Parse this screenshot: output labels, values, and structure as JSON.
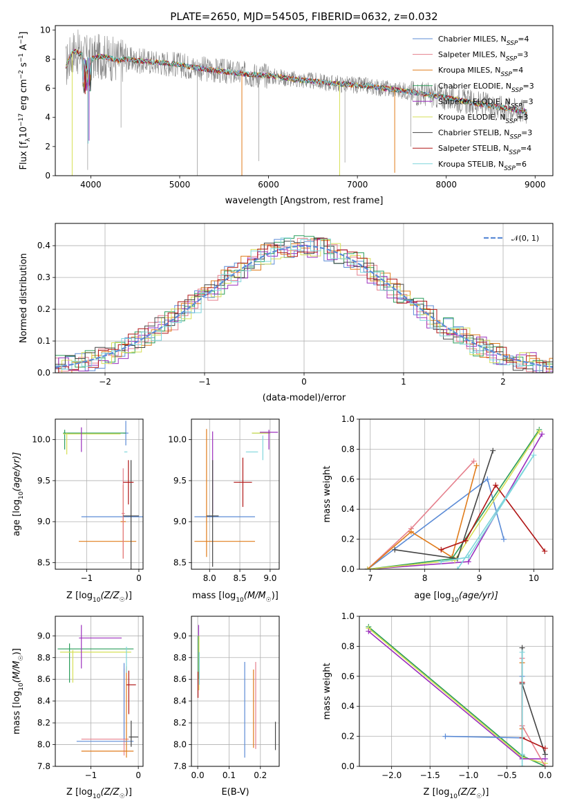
{
  "colors": {
    "c_miles": "#5b8bd6",
    "s_miles": "#e57f8c",
    "k_miles": "#e07b1a",
    "c_elodie": "#2a9d5a",
    "s_elodie": "#9b2fbd",
    "k_elodie": "#d6df55",
    "c_stelib": "#444444",
    "s_stelib": "#b01515",
    "k_stelib": "#7fd6dc",
    "data": "#808080",
    "gauss": "#5b8bd6"
  },
  "chart_data": [
    {
      "id": "spectrum",
      "type": "line",
      "title": "PLATE=2650, MJD=54505, FIBERID=0632, z=0.032",
      "xlabel": "wavelength [Angstrom, rest frame]",
      "ylabel": "Flux [f",
      "ylabel_sub": "λ",
      "ylabel_rest": "10",
      "ylabel_sup1": "−17",
      "ylabel_tail": " erg cm",
      "ylabel_sup2": "−2",
      "ylabel_tail2": " s",
      "ylabel_sup3": "−1",
      "ylabel_tail3": " A",
      "ylabel_sup4": "−1",
      "ylabel_end": "]",
      "xlim": [
        3600,
        9200
      ],
      "ylim": [
        0,
        10.3
      ],
      "xticks": [
        4000,
        5000,
        6000,
        7000,
        8000,
        9000
      ],
      "yticks": [
        0,
        2,
        4,
        6,
        8,
        10
      ],
      "continuum": [
        [
          3720,
          7.5
        ],
        [
          3800,
          8.6
        ],
        [
          3900,
          8.3
        ],
        [
          4000,
          8.0
        ],
        [
          4100,
          8.2
        ],
        [
          4200,
          8.1
        ],
        [
          4300,
          7.9
        ],
        [
          4400,
          8.0
        ],
        [
          4500,
          7.9
        ],
        [
          4700,
          7.8
        ],
        [
          4900,
          7.7
        ],
        [
          5100,
          7.5
        ],
        [
          5300,
          7.3
        ],
        [
          5500,
          7.15
        ],
        [
          5700,
          7.0
        ],
        [
          5900,
          6.9
        ],
        [
          6100,
          6.8
        ],
        [
          6300,
          6.6
        ],
        [
          6500,
          6.5
        ],
        [
          6700,
          6.35
        ],
        [
          6900,
          6.25
        ],
        [
          7100,
          6.15
        ],
        [
          7300,
          6.0
        ],
        [
          7500,
          5.85
        ],
        [
          7700,
          5.65
        ],
        [
          7900,
          5.45
        ],
        [
          8100,
          5.25
        ],
        [
          8300,
          5.0
        ],
        [
          8500,
          4.8
        ],
        [
          8700,
          4.6
        ],
        [
          8900,
          4.4
        ]
      ],
      "legend": [
        {
          "label": "Chabrier MILES, N",
          "sub": "SSP",
          "val": "=4",
          "color": "#5b8bd6"
        },
        {
          "label": "Salpeter MILES, N",
          "sub": "SSP",
          "val": "=3",
          "color": "#e57f8c"
        },
        {
          "label": "Kroupa MILES, N",
          "sub": "SSP",
          "val": "=4",
          "color": "#e07b1a"
        },
        {
          "label": "Chabrier ELODIE, N",
          "sub": "SSP",
          "val": "=3",
          "color": "#2a9d5a"
        },
        {
          "label": "Salpeter ELODIE, N",
          "sub": "SSP",
          "val": "=3",
          "color": "#9b2fbd"
        },
        {
          "label": "Kroupa ELODIE, N",
          "sub": "SSP",
          "val": "=3",
          "color": "#d6df55"
        },
        {
          "label": "Chabrier STELIB, N",
          "sub": "SSP",
          "val": "=3",
          "color": "#444444"
        },
        {
          "label": "Salpeter STELIB, N",
          "sub": "SSP",
          "val": "=4",
          "color": "#b01515"
        },
        {
          "label": "Kroupa STELIB, N",
          "sub": "SSP",
          "val": "=6",
          "color": "#7fd6dc"
        }
      ]
    },
    {
      "id": "residuals",
      "type": "step",
      "xlabel": "(data-model)/error",
      "ylabel": "Normed distribution",
      "xlim": [
        -2.5,
        2.5
      ],
      "ylim": [
        0,
        0.47
      ],
      "xticks": [
        -2,
        -1,
        0,
        1,
        2
      ],
      "xticklabels": [
        "−2",
        "−1",
        "0",
        "1",
        "2"
      ],
      "yticks": [
        0.0,
        0.1,
        0.2,
        0.3,
        0.4
      ],
      "yticklabels": [
        "0.0",
        "0.1",
        "0.2",
        "0.3",
        "0.4"
      ],
      "bin_width": 0.1,
      "legend_label": "𝒩(0, 1)"
    },
    {
      "id": "age-vs-Z",
      "type": "errorbar",
      "xlabel": "Z [log10(Z/Z☉)]",
      "xlabel_main": "Z [log",
      "xlabel_sub": "10",
      "xlabel_rest": "(Z/Z",
      "xlabel_sun": "☉",
      "xlabel_end": ")]",
      "ylabel_main": "age  [log",
      "ylabel_sub": "10",
      "ylabel_rest": "(age/yr)]",
      "xlim": [
        -1.6,
        0.08
      ],
      "ylim": [
        8.42,
        10.25
      ],
      "xticks": [
        -1,
        0
      ],
      "xticklabels": [
        "−1",
        "0"
      ],
      "yticks": [
        8.5,
        9.0,
        9.5,
        10.0
      ],
      "yticklabels": [
        "8.5",
        "9.0",
        "9.5",
        "10.0"
      ],
      "points": [
        {
          "k": "c_miles",
          "x": -0.5,
          "xe": 0.6,
          "y": 9.06,
          "ye": 0
        },
        {
          "k": "c_miles",
          "x": -0.25,
          "xe": 0.05,
          "y": 10.08,
          "ye": 0.15
        },
        {
          "k": "k_miles",
          "x": -0.6,
          "xe": 0.55,
          "y": 8.76,
          "ye": 0
        },
        {
          "k": "k_miles",
          "x": -0.3,
          "xe": 0.05,
          "y": 9.0,
          "ye": 0.45
        },
        {
          "k": "s_miles",
          "x": -0.3,
          "xe": 0.03,
          "y": 9.1,
          "ye": 0.55
        },
        {
          "k": "c_elodie",
          "x": -0.85,
          "xe": 0.6,
          "y": 10.08,
          "ye": 0
        },
        {
          "k": "c_elodie",
          "x": -1.42,
          "xe": 0,
          "y": 10.0,
          "ye": 0.12
        },
        {
          "k": "k_elodie",
          "x": -0.9,
          "xe": 0.55,
          "y": 10.07,
          "ye": 0
        },
        {
          "k": "k_elodie",
          "x": -1.38,
          "xe": 0,
          "y": 9.95,
          "ye": 0.13
        },
        {
          "k": "s_elodie",
          "x": -1.1,
          "xe": 0,
          "y": 10.0,
          "ye": 0.15
        },
        {
          "k": "c_stelib",
          "x": -0.15,
          "xe": 0.15,
          "y": 9.07,
          "ye": 0
        },
        {
          "k": "c_stelib",
          "x": -0.15,
          "xe": 0,
          "y": 9.0,
          "ye": 0.75
        },
        {
          "k": "s_stelib",
          "x": -0.2,
          "xe": 0.1,
          "y": 9.48,
          "ye": 0.27
        },
        {
          "k": "k_stelib",
          "x": -0.25,
          "xe": 0.03,
          "y": 9.85,
          "ye": 0
        }
      ]
    },
    {
      "id": "age-vs-mass",
      "type": "errorbar",
      "xlabel_main": "mass [log",
      "xlabel_sub": "10",
      "xlabel_rest": "(M/M",
      "xlabel_sun": "☉",
      "xlabel_end": ")]",
      "xlim": [
        7.7,
        9.15
      ],
      "ylim": [
        8.42,
        10.25
      ],
      "xticks": [
        8.0,
        8.5,
        9.0
      ],
      "xticklabels": [
        "8.0",
        "8.5",
        "9.0"
      ],
      "yticks": [
        8.5,
        9.0,
        9.5,
        10.0
      ],
      "yticklabels": [
        "8.5",
        "9.0",
        "9.5",
        "10.0"
      ],
      "points": [
        {
          "k": "c_miles",
          "x": 8.25,
          "xe": 0.5,
          "y": 9.06,
          "ye": 0
        },
        {
          "k": "k_miles",
          "x": 8.25,
          "xe": 0.5,
          "y": 8.76,
          "ye": 0
        },
        {
          "k": "k_miles",
          "x": 7.95,
          "xe": 0,
          "y": 9.35,
          "ye": 0.78
        },
        {
          "k": "s_elodie",
          "x": 8.05,
          "xe": 0,
          "y": 9.6,
          "ye": 0.5
        },
        {
          "k": "c_stelib",
          "x": 8.05,
          "xe": 0,
          "y": 9.1,
          "ye": 0.65
        },
        {
          "k": "c_stelib",
          "x": 8.05,
          "xe": 0.1,
          "y": 9.07,
          "ye": 0
        },
        {
          "k": "s_stelib",
          "x": 8.55,
          "xe": 0.15,
          "y": 9.48,
          "ye": 0.3
        },
        {
          "k": "c_elodie",
          "x": 8.85,
          "xe": 0.15,
          "y": 10.08,
          "ye": 0
        },
        {
          "k": "k_elodie",
          "x": 8.85,
          "xe": 0.15,
          "y": 10.08,
          "ye": 0
        },
        {
          "k": "s_elodie",
          "x": 8.98,
          "xe": 0.15,
          "y": 10.09,
          "ye": 0
        },
        {
          "k": "s_elodie",
          "x": 8.98,
          "xe": 0,
          "y": 10.0,
          "ye": 0.12
        },
        {
          "k": "k_stelib",
          "x": 8.7,
          "xe": 0.1,
          "y": 9.85,
          "ye": 0
        },
        {
          "k": "k_stelib",
          "x": 8.88,
          "xe": 0,
          "y": 9.9,
          "ye": 0.15
        }
      ]
    },
    {
      "id": "mw-vs-age",
      "type": "line",
      "xlabel_main": "age  [log",
      "xlabel_sub": "10",
      "xlabel_rest": "(age/yr)]",
      "ylabel": "mass weight",
      "xlim": [
        6.8,
        10.35
      ],
      "ylim": [
        0,
        1.0
      ],
      "xticks": [
        7,
        8,
        9,
        10
      ],
      "xticklabels": [
        "7",
        "8",
        "9",
        "10"
      ],
      "yticks": [
        0.0,
        0.2,
        0.4,
        0.6,
        0.8,
        1.0
      ],
      "yticklabels": [
        "0.0",
        "0.2",
        "0.4",
        "0.6",
        "0.8",
        "1.0"
      ],
      "series": [
        {
          "k": "c_miles",
          "x": [
            6.95,
            9.15,
            9.45
          ],
          "y": [
            0.0,
            0.6,
            0.2
          ]
        },
        {
          "k": "s_miles",
          "x": [
            6.95,
            7.75,
            8.9
          ],
          "y": [
            0.0,
            0.27,
            0.72
          ]
        },
        {
          "k": "k_miles",
          "x": [
            6.95,
            7.75,
            8.5,
            8.95
          ],
          "y": [
            0.0,
            0.25,
            0.08,
            0.69
          ]
        },
        {
          "k": "c_elodie",
          "x": [
            6.95,
            8.5,
            10.1
          ],
          "y": [
            0.0,
            0.07,
            0.93
          ]
        },
        {
          "k": "s_elodie",
          "x": [
            6.95,
            8.8,
            10.15
          ],
          "y": [
            0.0,
            0.05,
            0.9
          ]
        },
        {
          "k": "k_elodie",
          "x": [
            6.95,
            8.55,
            10.1
          ],
          "y": [
            0.0,
            0.06,
            0.92
          ]
        },
        {
          "k": "c_stelib",
          "x": [
            7.45,
            8.6,
            9.25
          ],
          "y": [
            0.13,
            0.07,
            0.79
          ]
        },
        {
          "k": "s_stelib",
          "x": [
            8.3,
            8.75,
            9.3,
            10.2
          ],
          "y": [
            0.13,
            0.19,
            0.56,
            0.12
          ]
        },
        {
          "k": "k_stelib",
          "x": [
            8.3,
            8.8,
            10.0,
            8.6
          ],
          "y": [
            0.05,
            0.08,
            0.76,
            0.0
          ]
        }
      ]
    },
    {
      "id": "mass-vs-Z",
      "type": "errorbar",
      "xlabel_main": "Z [log",
      "xlabel_sub": "10",
      "xlabel_rest": "(Z/Z",
      "xlabel_sun": "☉",
      "xlabel_end": ")]",
      "ylabel_main": "mass [log",
      "ylabel_sub": "10",
      "ylabel_rest": "(M/M",
      "ylabel_sun": "☉",
      "ylabel_end": ")]",
      "xlim": [
        -1.75,
        0.1
      ],
      "ylim": [
        7.8,
        9.18
      ],
      "xticks": [
        -1,
        0
      ],
      "xticklabels": [
        "−1",
        "0"
      ],
      "yticks": [
        7.8,
        8.0,
        8.2,
        8.4,
        8.6,
        8.8,
        9.0
      ],
      "yticklabels": [
        "7.8",
        "8.0",
        "8.2",
        "8.4",
        "8.6",
        "8.8",
        "9.0"
      ],
      "points": [
        {
          "k": "c_elodie",
          "x": -0.9,
          "xe": 0.8,
          "y": 8.88,
          "ye": 0
        },
        {
          "k": "c_elodie",
          "x": -1.45,
          "xe": 0,
          "y": 8.75,
          "ye": 0.18
        },
        {
          "k": "k_elodie",
          "x": -0.9,
          "xe": 0.75,
          "y": 8.85,
          "ye": 0
        },
        {
          "k": "k_elodie",
          "x": -1.38,
          "xe": 0,
          "y": 8.72,
          "ye": 0.15
        },
        {
          "k": "s_elodie",
          "x": -0.8,
          "xe": 0.45,
          "y": 8.98,
          "ye": 0
        },
        {
          "k": "s_elodie",
          "x": -1.2,
          "xe": 0,
          "y": 8.9,
          "ye": 0.2
        },
        {
          "k": "s_miles",
          "x": -0.7,
          "xe": 0.5,
          "y": 8.05,
          "ye": 0
        },
        {
          "k": "s_miles",
          "x": -0.3,
          "xe": 0,
          "y": 8.3,
          "ye": 0.4
        },
        {
          "k": "k_miles",
          "x": -0.65,
          "xe": 0.55,
          "y": 7.94,
          "ye": 0
        },
        {
          "k": "k_miles",
          "x": -0.25,
          "xe": 0,
          "y": 8.3,
          "ye": 0.42
        },
        {
          "k": "c_miles",
          "x": -0.7,
          "xe": 0.6,
          "y": 8.03,
          "ye": 0
        },
        {
          "k": "c_miles",
          "x": -0.3,
          "xe": 0,
          "y": 8.4,
          "ye": 0.35
        },
        {
          "k": "c_stelib",
          "x": -0.1,
          "xe": 0.1,
          "y": 8.07,
          "ye": 0
        },
        {
          "k": "c_stelib",
          "x": -0.15,
          "xe": 0,
          "y": 8.1,
          "ye": 0.12
        },
        {
          "k": "s_stelib",
          "x": -0.15,
          "xe": 0.1,
          "y": 8.55,
          "ye": 0
        },
        {
          "k": "s_stelib",
          "x": -0.2,
          "xe": 0,
          "y": 8.48,
          "ye": 0.2
        },
        {
          "k": "k_stelib",
          "x": -0.25,
          "xe": 0,
          "y": 8.78,
          "ye": 0.12
        }
      ]
    },
    {
      "id": "mass-vs-ebv",
      "type": "errorbar",
      "xlabel": "E(B-V)",
      "xlim": [
        -0.02,
        0.26
      ],
      "ylim": [
        7.8,
        9.18
      ],
      "xticks": [
        0.0,
        0.1,
        0.2
      ],
      "xticklabels": [
        "0.0",
        "0.1",
        "0.2"
      ],
      "yticks": [
        7.8,
        8.0,
        8.2,
        8.4,
        8.6,
        8.8,
        9.0
      ],
      "yticklabels": [
        "7.8",
        "8.0",
        "8.2",
        "8.4",
        "8.6",
        "8.8",
        "9.0"
      ],
      "points": [
        {
          "k": "c_miles",
          "x": 0.15,
          "xe": 0,
          "y": 8.32,
          "ye": 0.44
        },
        {
          "k": "k_miles",
          "x": 0.178,
          "xe": 0,
          "y": 8.33,
          "ye": 0.36
        },
        {
          "k": "s_miles",
          "x": 0.185,
          "xe": 0,
          "y": 8.36,
          "ye": 0.4
        },
        {
          "k": "c_stelib",
          "x": 0.248,
          "xe": 0,
          "y": 8.08,
          "ye": 0.13
        },
        {
          "k": "s_elodie",
          "x": 0.003,
          "xe": 0,
          "y": 8.95,
          "ye": 0.15
        },
        {
          "k": "c_elodie",
          "x": 0.002,
          "xe": 0,
          "y": 8.8,
          "ye": 0.2
        },
        {
          "k": "k_elodie",
          "x": 0.004,
          "xe": 0,
          "y": 8.75,
          "ye": 0.25
        },
        {
          "k": "s_stelib",
          "x": 0.001,
          "xe": 0,
          "y": 8.55,
          "ye": 0.12
        },
        {
          "k": "k_stelib",
          "x": 0.005,
          "xe": 0,
          "y": 8.7,
          "ye": 0.15
        }
      ]
    },
    {
      "id": "mw-vs-Z",
      "type": "line",
      "xlabel_main": "Z [log",
      "xlabel_sub": "10",
      "xlabel_rest": "(Z/Z",
      "xlabel_sun": "☉",
      "xlabel_end": ")]",
      "ylabel": "mass weight",
      "xlim": [
        -2.42,
        0.1
      ],
      "ylim": [
        0,
        1.0
      ],
      "xticks": [
        -2.0,
        -1.5,
        -1.0,
        -0.5,
        0.0
      ],
      "xticklabels": [
        "−2.0",
        "−1.5",
        "−1.0",
        "−0.5",
        "0.0"
      ],
      "yticks": [
        0.0,
        0.2,
        0.4,
        0.6,
        0.8,
        1.0
      ],
      "yticklabels": [
        "0.0",
        "0.2",
        "0.4",
        "0.6",
        "0.8",
        "1.0"
      ],
      "series": [
        {
          "k": "c_elodie",
          "x": [
            -2.3,
            -0.3,
            0.0
          ],
          "y": [
            0.93,
            0.07,
            0.0
          ]
        },
        {
          "k": "k_elodie",
          "x": [
            -2.3,
            -0.3,
            0.0
          ],
          "y": [
            0.92,
            0.06,
            0.02
          ]
        },
        {
          "k": "s_elodie",
          "x": [
            -2.3,
            -0.3,
            0.0
          ],
          "y": [
            0.9,
            0.05,
            0.05
          ]
        },
        {
          "k": "c_miles",
          "x": [
            -1.3,
            -0.3,
            -0.3
          ],
          "y": [
            0.2,
            0.19,
            0.6
          ]
        },
        {
          "k": "k_miles",
          "x": [
            -0.3,
            -0.3,
            -0.3
          ],
          "y": [
            0.25,
            0.08,
            0.69
          ]
        },
        {
          "k": "s_miles",
          "x": [
            -0.3,
            -0.3,
            0.0
          ],
          "y": [
            0.72,
            0.27,
            0.0
          ]
        },
        {
          "k": "c_stelib",
          "x": [
            -0.3,
            -0.3,
            0.0
          ],
          "y": [
            0.79,
            0.55,
            0.08
          ]
        },
        {
          "k": "s_stelib",
          "x": [
            -0.3,
            -0.3,
            0.0
          ],
          "y": [
            0.56,
            0.19,
            0.12
          ]
        },
        {
          "k": "k_stelib",
          "x": [
            -0.3,
            -0.3,
            -0.3
          ],
          "y": [
            0.76,
            0.08,
            0.0
          ]
        }
      ]
    }
  ]
}
